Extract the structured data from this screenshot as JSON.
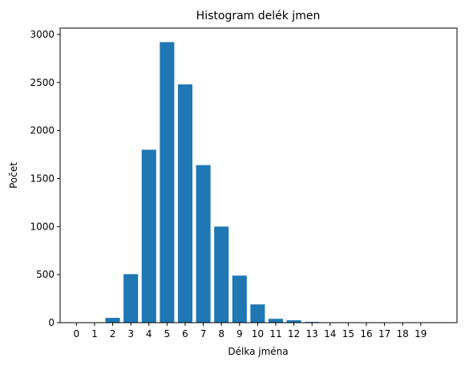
{
  "chart_data": {
    "type": "bar",
    "title": "Histogram delék jmen",
    "xlabel": "Délka jména",
    "ylabel": "Počet",
    "categories": [
      "0",
      "1",
      "2",
      "3",
      "4",
      "5",
      "6",
      "7",
      "8",
      "9",
      "10",
      "11",
      "12",
      "13",
      "14",
      "15",
      "16",
      "17",
      "18",
      "19"
    ],
    "values": [
      0,
      2,
      50,
      505,
      1800,
      2920,
      2480,
      1640,
      1000,
      490,
      190,
      40,
      25,
      8,
      3,
      1,
      0,
      0,
      0,
      0
    ],
    "yticks": [
      "0",
      "500",
      "1000",
      "1500",
      "2000",
      "2500",
      "3000"
    ],
    "ylim": [
      0,
      3066
    ],
    "grid": false,
    "bar_color": "#1f77b4"
  }
}
